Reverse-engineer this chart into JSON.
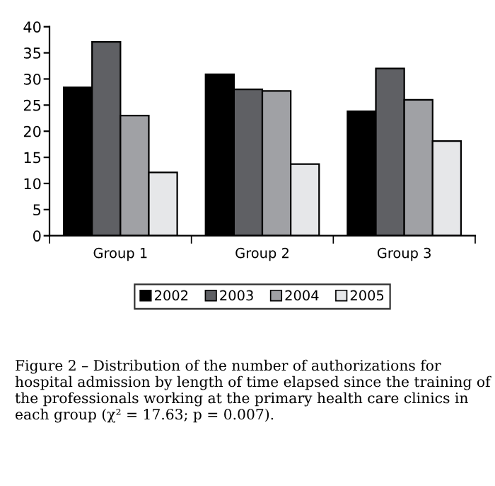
{
  "chart_data": {
    "type": "bar",
    "categories": [
      "Group 1",
      "Group 2",
      "Group 3"
    ],
    "series": [
      {
        "name": "2002",
        "color": "#000000",
        "values": [
          28.4,
          30.9,
          23.8
        ]
      },
      {
        "name": "2003",
        "color": "#5f6064",
        "values": [
          37.1,
          28,
          32
        ]
      },
      {
        "name": "2004",
        "color": "#a0a1a5",
        "values": [
          23,
          27.7,
          26
        ]
      },
      {
        "name": "2005",
        "color": "#e6e7e9",
        "values": [
          12.1,
          13.7,
          18.1
        ]
      }
    ],
    "ylim": [
      0,
      40
    ],
    "yticks": [
      0,
      5,
      10,
      15,
      20,
      25,
      30,
      35,
      40
    ],
    "grid": false,
    "legend": "bottom",
    "annotations": [
      "Figure 2 – Distribution of the number of authorizations for hospital admission by length of time elapsed since the training of the professionals working at the primary health care clinics in each group (χ² = 17.63; p = 0.007)."
    ]
  }
}
